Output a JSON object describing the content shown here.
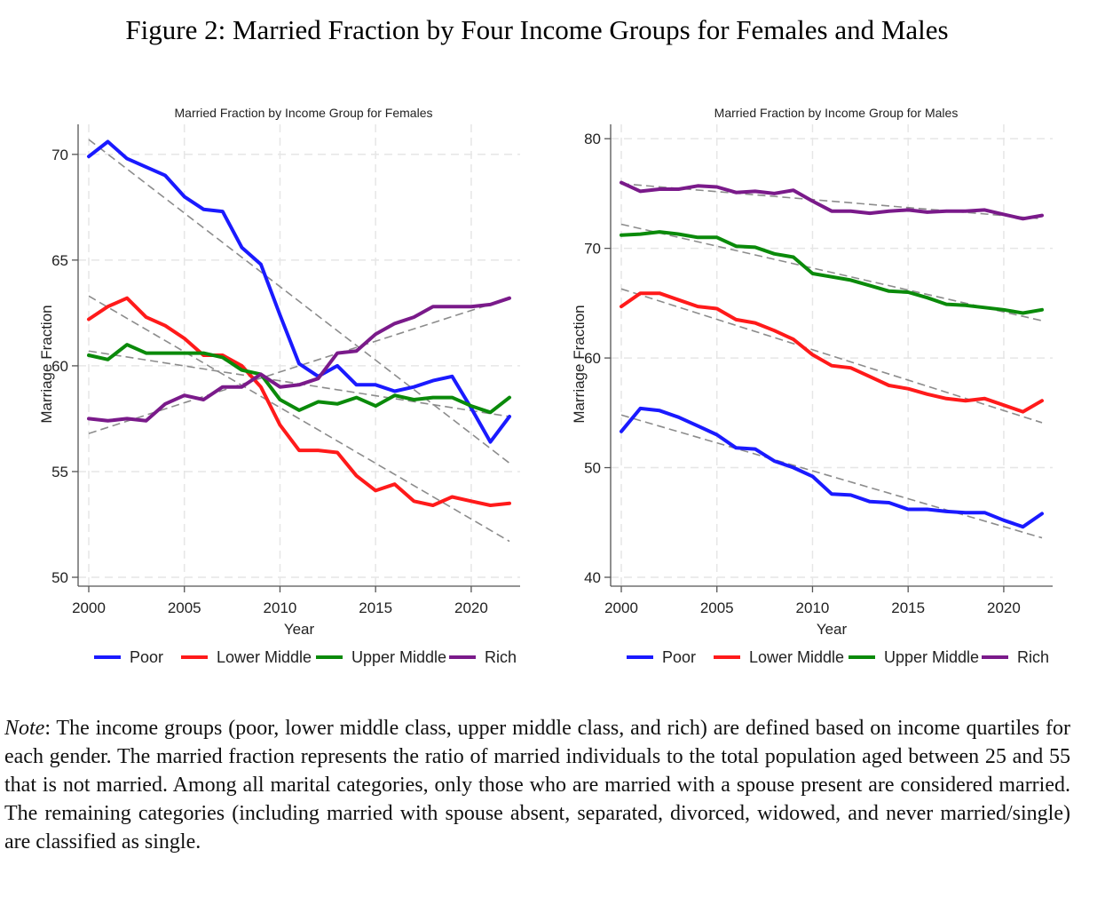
{
  "figure": {
    "title": "Figure 2: Married Fraction by Four Income Groups for Females and Males",
    "note_label": "Note",
    "note_text": ": The income groups (poor, lower middle class, upper middle class, and rich) are defined based on income quartiles for each gender. The married fraction represents the ratio of married individuals to the total population aged between 25 and 55 that is not married. Among all marital categories, only those who are married with a spouse present are considered married. The remaining categories (including married with spouse absent, separated, divorced, widowed, and never married/single) are classified as single."
  },
  "colors": {
    "Poor": "#1a1aff",
    "Lower Middle": "#ff1a1a",
    "Upper Middle": "#0a8a0a",
    "Rich": "#7a1a8a",
    "fit": "#8c8c8c",
    "grid": "#e6e6e6"
  },
  "chart_data": [
    {
      "type": "line",
      "title": "Married Fraction by Income Group for Females",
      "xlabel": "Year",
      "ylabel": "Marriage Fraction",
      "xlim": [
        2000,
        2022
      ],
      "ylim": [
        50,
        71
      ],
      "xticks": [
        2000,
        2005,
        2010,
        2015,
        2020
      ],
      "yticks": [
        50,
        55,
        60,
        65,
        70
      ],
      "grid": true,
      "legend_position": "bottom",
      "linear_fit_lines": true,
      "x": [
        2000,
        2001,
        2002,
        2003,
        2004,
        2005,
        2006,
        2007,
        2008,
        2009,
        2010,
        2011,
        2012,
        2013,
        2014,
        2015,
        2016,
        2017,
        2018,
        2019,
        2020,
        2021,
        2022
      ],
      "series": [
        {
          "name": "Poor",
          "values": [
            69.9,
            70.6,
            69.8,
            69.4,
            69.0,
            68.0,
            67.4,
            67.3,
            65.6,
            64.8,
            62.4,
            60.1,
            59.5,
            60.0,
            59.1,
            59.1,
            58.8,
            59.0,
            59.3,
            59.5,
            58.0,
            56.4,
            57.6
          ],
          "fit": [
            70.7,
            55.4
          ]
        },
        {
          "name": "Lower Middle",
          "values": [
            62.2,
            62.8,
            63.2,
            62.3,
            61.9,
            61.3,
            60.5,
            60.5,
            60.0,
            59.0,
            57.2,
            56.0,
            56.0,
            55.9,
            54.8,
            54.1,
            54.4,
            53.6,
            53.4,
            53.8,
            53.6,
            53.4,
            53.5
          ],
          "fit": [
            63.3,
            51.7
          ]
        },
        {
          "name": "Upper Middle",
          "values": [
            60.5,
            60.3,
            61.0,
            60.6,
            60.6,
            60.6,
            60.6,
            60.4,
            59.8,
            59.6,
            58.4,
            57.9,
            58.3,
            58.2,
            58.5,
            58.1,
            58.6,
            58.4,
            58.5,
            58.5,
            58.1,
            57.8,
            58.5
          ],
          "fit": [
            60.7,
            57.6
          ]
        },
        {
          "name": "Rich",
          "values": [
            57.5,
            57.4,
            57.5,
            57.4,
            58.2,
            58.6,
            58.4,
            59.0,
            59.0,
            59.6,
            59.0,
            59.1,
            59.4,
            60.6,
            60.7,
            61.5,
            62.0,
            62.3,
            62.8,
            62.8,
            62.8,
            62.9,
            63.2
          ],
          "fit": [
            56.8,
            63.2
          ]
        }
      ]
    },
    {
      "type": "line",
      "title": "Married Fraction by Income Group for Males",
      "xlabel": "Year",
      "ylabel": "Marriage Fraction",
      "xlim": [
        2000,
        2022
      ],
      "ylim": [
        40,
        80.5
      ],
      "xticks": [
        2000,
        2005,
        2010,
        2015,
        2020
      ],
      "yticks": [
        40,
        50,
        60,
        70,
        80
      ],
      "grid": true,
      "legend_position": "bottom",
      "linear_fit_lines": true,
      "x": [
        2000,
        2001,
        2002,
        2003,
        2004,
        2005,
        2006,
        2007,
        2008,
        2009,
        2010,
        2011,
        2012,
        2013,
        2014,
        2015,
        2016,
        2017,
        2018,
        2019,
        2020,
        2021,
        2022
      ],
      "series": [
        {
          "name": "Poor",
          "values": [
            53.3,
            55.4,
            55.2,
            54.6,
            53.8,
            53.0,
            51.8,
            51.7,
            50.6,
            50.0,
            49.2,
            47.6,
            47.5,
            46.9,
            46.8,
            46.2,
            46.2,
            46.0,
            45.9,
            45.9,
            45.2,
            44.6,
            45.8
          ],
          "fit": [
            54.8,
            43.6
          ]
        },
        {
          "name": "Lower Middle",
          "values": [
            64.7,
            65.9,
            65.9,
            65.3,
            64.7,
            64.5,
            63.5,
            63.2,
            62.5,
            61.7,
            60.3,
            59.3,
            59.1,
            58.3,
            57.5,
            57.2,
            56.7,
            56.3,
            56.1,
            56.3,
            55.7,
            55.1,
            56.1
          ],
          "fit": [
            66.3,
            54.1
          ]
        },
        {
          "name": "Upper Middle",
          "values": [
            71.2,
            71.3,
            71.5,
            71.3,
            71.0,
            71.0,
            70.2,
            70.1,
            69.5,
            69.2,
            67.7,
            67.4,
            67.1,
            66.6,
            66.1,
            66.0,
            65.5,
            64.9,
            64.8,
            64.6,
            64.4,
            64.1,
            64.4
          ],
          "fit": [
            72.2,
            63.4
          ]
        },
        {
          "name": "Rich",
          "values": [
            76.0,
            75.2,
            75.4,
            75.4,
            75.7,
            75.6,
            75.1,
            75.2,
            75.0,
            75.3,
            74.3,
            73.4,
            73.4,
            73.2,
            73.4,
            73.5,
            73.3,
            73.4,
            73.4,
            73.5,
            73.1,
            72.7,
            73.0
          ],
          "fit": [
            75.9,
            72.7
          ]
        }
      ]
    }
  ]
}
